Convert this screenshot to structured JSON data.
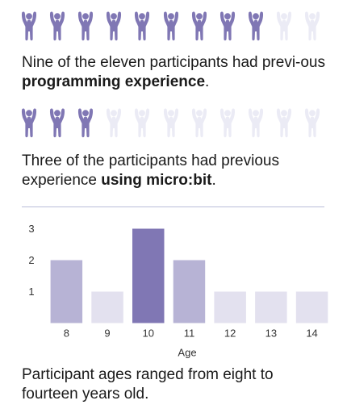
{
  "icon_colors": {
    "filled": "#8077b4",
    "empty": "#ebebf5"
  },
  "participants_total": 11,
  "programming": {
    "count": 9,
    "text_before": "Nine of the eleven participants had previ-ous ",
    "text_bold": "programming experience",
    "text_after": "."
  },
  "microbit": {
    "count": 3,
    "text_before": "Three of the participants had previous experience ",
    "text_bold": "using micro:bit",
    "text_after": "."
  },
  "chart_data": {
    "type": "bar",
    "categories": [
      "8",
      "9",
      "10",
      "11",
      "12",
      "13",
      "14"
    ],
    "values": [
      2,
      1,
      3,
      2,
      1,
      1,
      1
    ],
    "title": "",
    "xlabel": "Age",
    "ylabel": "",
    "ylim": [
      0,
      3
    ],
    "yticks": [
      1,
      2,
      3
    ],
    "grid": false,
    "legend": "none",
    "colors": {
      "1": "#e3e1ef",
      "2": "#b7b3d5",
      "3": "#8077b4"
    }
  },
  "ages_caption": "Participant ages ranged from eight to fourteen years old."
}
